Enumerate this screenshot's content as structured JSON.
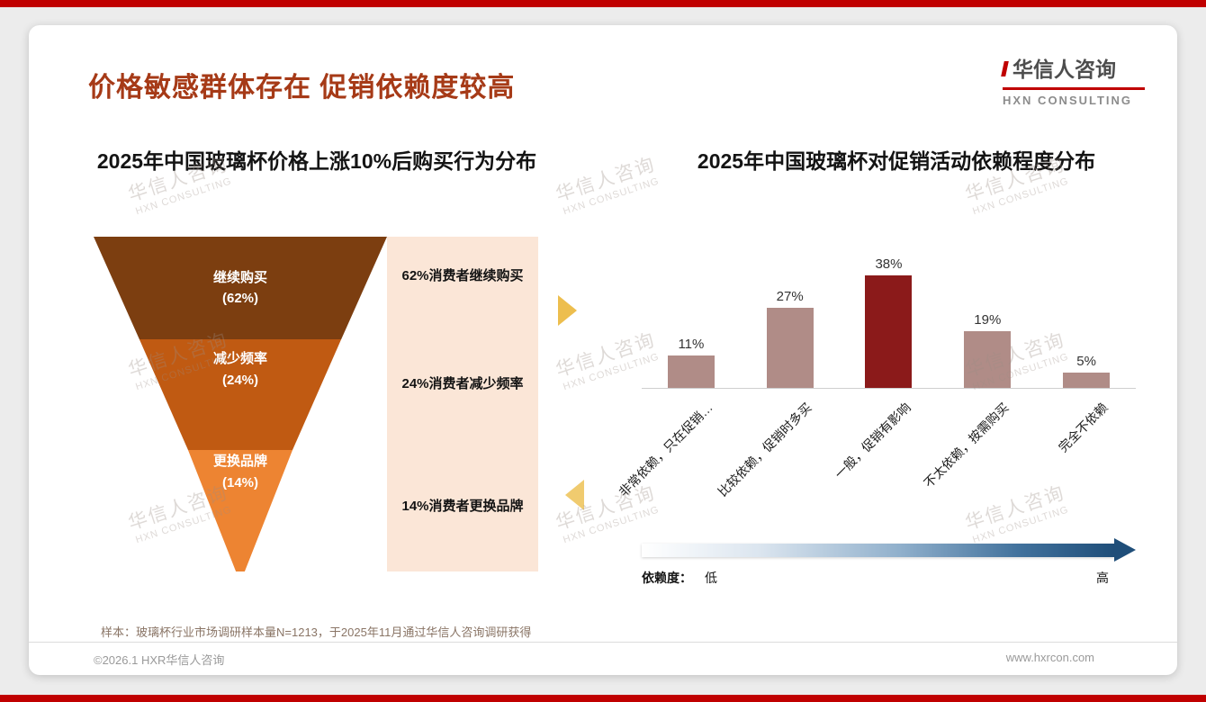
{
  "page": {
    "title": "价格敏感群体存在 促销依赖度较高",
    "sample_note": "样本：玻璃杯行业市场调研样本量N=1213，于2025年11月通过华信人咨询调研获得",
    "footer_left": "©2026.1 HXR华信人咨询",
    "footer_right": "www.hxrcon.com",
    "accent_color": "#C00000"
  },
  "logo": {
    "cn": "华信人咨询",
    "en": "HXN CONSULTING"
  },
  "watermark": {
    "cn": "华信人咨询",
    "en": "HXN CONSULTING"
  },
  "chart_data": [
    {
      "type": "funnel",
      "title": "2025年中国玻璃杯价格上涨10%后购买行为分布",
      "segments": [
        {
          "label": "继续购买",
          "pct_label": "(62%)",
          "value": 62,
          "desc": "62%消费者继续购买",
          "color": "#7C3E10"
        },
        {
          "label": "减少频率",
          "pct_label": "(24%)",
          "value": 24,
          "desc": "24%消费者减少频率",
          "color": "#C05A12"
        },
        {
          "label": "更换品牌",
          "pct_label": "(14%)",
          "value": 14,
          "desc": "14%消费者更换品牌",
          "color": "#ED8432"
        }
      ]
    },
    {
      "type": "bar",
      "title": "2025年中国玻璃杯对促销活动依赖程度分布",
      "categories": [
        "非常依赖，只在促销…",
        "比较依赖，促销时多买",
        "一般，促销有影响",
        "不太依赖，按需购买",
        "完全不依赖"
      ],
      "values": [
        11,
        27,
        38,
        19,
        5
      ],
      "unit": "%",
      "bar_colors": [
        "#B08C87",
        "#B08C87",
        "#8B1A1A",
        "#B08C87",
        "#B08C87"
      ],
      "ylim": [
        0,
        40
      ],
      "legend": "none",
      "axis_note": {
        "label": "依赖度：",
        "low": "低",
        "high": "高"
      },
      "gradient": [
        "#FFFFFF",
        "#1F4E79"
      ]
    }
  ]
}
